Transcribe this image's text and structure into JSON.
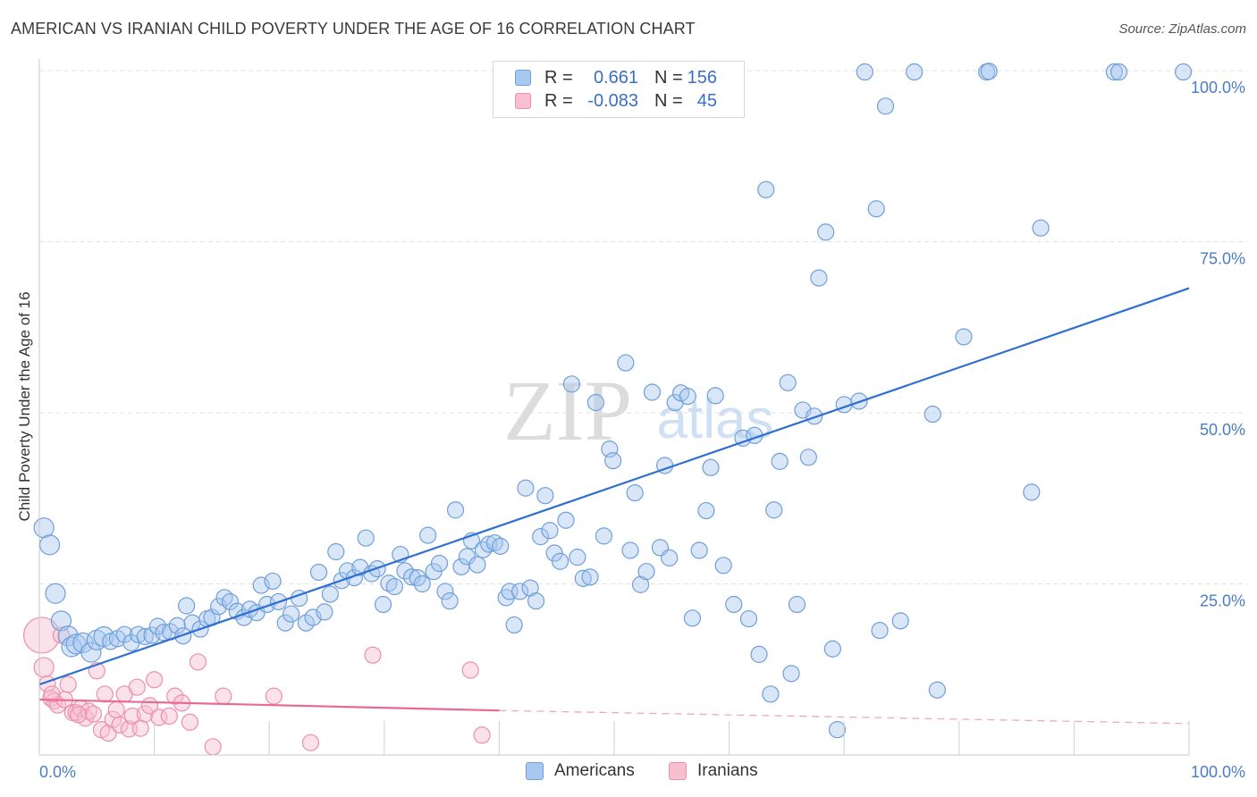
{
  "title": "AMERICAN VS IRANIAN CHILD POVERTY UNDER THE AGE OF 16 CORRELATION CHART",
  "source": "Source: ZipAtlas.com",
  "watermark": {
    "zip": "ZIP",
    "atlas": "atlas"
  },
  "colors": {
    "americans_fill": "#a9c8f0",
    "americans_stroke": "#6f9fd8",
    "americans_line": "#2e6fd0",
    "iranians_fill": "#f7bfd0",
    "iranians_stroke": "#ec8fac",
    "iranians_line": "#e86a94",
    "tick_label": "#4a7cc8",
    "grid": "#e2e2e2"
  },
  "legend": {
    "rows": [
      {
        "r_label": "R =",
        "r_value": "0.661",
        "n_label": "N =",
        "n_value": "156"
      },
      {
        "r_label": "R =",
        "r_value": "-0.083",
        "n_label": "N =",
        "n_value": "45"
      }
    ]
  },
  "bottom_legend": {
    "americans": "Americans",
    "iranians": "Iranians"
  },
  "chart_data": {
    "type": "scatter",
    "title": "AMERICAN VS IRANIAN CHILD POVERTY UNDER THE AGE OF 16 CORRELATION CHART",
    "xlabel": "",
    "ylabel": "Child Poverty Under the Age of 16",
    "xlim": [
      0,
      100
    ],
    "ylim": [
      0,
      100
    ],
    "x_tick_labels": [
      "0.0%",
      "100.0%"
    ],
    "y_tick_labels": [
      "25.0%",
      "50.0%",
      "75.0%",
      "100.0%"
    ],
    "y_ticks": [
      25,
      50,
      75,
      100
    ],
    "grid": true,
    "legend_placement": "top-center",
    "series": [
      {
        "name": "Americans",
        "r": 0.661,
        "n": 156,
        "trend": {
          "x": [
            0,
            100
          ],
          "y": [
            10.3,
            68.2
          ]
        },
        "points": [
          [
            0.4,
            33.2
          ],
          [
            0.9,
            30.7
          ],
          [
            1.4,
            23.6
          ],
          [
            1.9,
            19.6
          ],
          [
            2.5,
            17.4
          ],
          [
            2.8,
            15.8
          ],
          [
            3.2,
            16.2
          ],
          [
            3.8,
            16.4
          ],
          [
            4.5,
            15.0
          ],
          [
            5.0,
            16.8
          ],
          [
            5.6,
            17.3
          ],
          [
            6.2,
            16.6
          ],
          [
            6.8,
            17.0
          ],
          [
            7.4,
            17.6
          ],
          [
            8.0,
            16.4
          ],
          [
            8.6,
            17.6
          ],
          [
            9.2,
            17.3
          ],
          [
            9.8,
            17.5
          ],
          [
            10.3,
            18.8
          ],
          [
            10.8,
            17.9
          ],
          [
            11.4,
            18.0
          ],
          [
            12.0,
            18.9
          ],
          [
            12.5,
            17.4
          ],
          [
            12.8,
            21.8
          ],
          [
            13.3,
            19.3
          ],
          [
            14.0,
            18.4
          ],
          [
            14.6,
            19.9
          ],
          [
            15.0,
            20.1
          ],
          [
            15.6,
            21.7
          ],
          [
            16.1,
            23.0
          ],
          [
            16.6,
            22.4
          ],
          [
            17.2,
            21.0
          ],
          [
            17.8,
            20.1
          ],
          [
            18.3,
            21.3
          ],
          [
            18.9,
            20.8
          ],
          [
            19.3,
            24.8
          ],
          [
            19.8,
            22.0
          ],
          [
            20.3,
            25.4
          ],
          [
            20.8,
            22.4
          ],
          [
            21.4,
            19.3
          ],
          [
            21.9,
            20.6
          ],
          [
            22.6,
            22.9
          ],
          [
            23.2,
            19.3
          ],
          [
            23.8,
            20.1
          ],
          [
            24.3,
            26.7
          ],
          [
            24.8,
            20.9
          ],
          [
            25.3,
            23.5
          ],
          [
            25.8,
            29.7
          ],
          [
            26.3,
            25.5
          ],
          [
            26.8,
            26.9
          ],
          [
            27.4,
            25.9
          ],
          [
            27.9,
            27.4
          ],
          [
            28.4,
            31.7
          ],
          [
            28.9,
            26.5
          ],
          [
            29.4,
            27.2
          ],
          [
            29.9,
            22.0
          ],
          [
            30.4,
            25.1
          ],
          [
            30.9,
            24.6
          ],
          [
            31.4,
            29.3
          ],
          [
            31.8,
            26.9
          ],
          [
            32.4,
            26.0
          ],
          [
            32.9,
            25.9
          ],
          [
            33.3,
            25.0
          ],
          [
            33.8,
            32.1
          ],
          [
            34.3,
            26.8
          ],
          [
            34.8,
            28.0
          ],
          [
            35.3,
            23.9
          ],
          [
            35.7,
            22.5
          ],
          [
            36.2,
            35.8
          ],
          [
            36.7,
            27.5
          ],
          [
            37.2,
            29.0
          ],
          [
            37.6,
            31.3
          ],
          [
            38.1,
            27.8
          ],
          [
            38.6,
            30.0
          ],
          [
            39.1,
            30.8
          ],
          [
            39.6,
            31.0
          ],
          [
            40.1,
            30.5
          ],
          [
            40.6,
            23.0
          ],
          [
            40.9,
            23.9
          ],
          [
            41.3,
            19.0
          ],
          [
            41.8,
            23.9
          ],
          [
            42.3,
            39.0
          ],
          [
            42.7,
            24.4
          ],
          [
            43.2,
            22.5
          ],
          [
            43.6,
            31.9
          ],
          [
            44.0,
            37.9
          ],
          [
            44.4,
            32.8
          ],
          [
            44.8,
            29.5
          ],
          [
            45.3,
            28.3
          ],
          [
            45.8,
            34.3
          ],
          [
            46.3,
            54.2
          ],
          [
            46.8,
            28.9
          ],
          [
            47.3,
            25.8
          ],
          [
            47.9,
            26.0
          ],
          [
            48.4,
            51.5
          ],
          [
            49.1,
            32.0
          ],
          [
            49.6,
            44.7
          ],
          [
            49.9,
            43.0
          ],
          [
            51.0,
            57.3
          ],
          [
            51.4,
            29.9
          ],
          [
            51.8,
            38.3
          ],
          [
            52.3,
            24.9
          ],
          [
            52.8,
            26.8
          ],
          [
            53.3,
            53.0
          ],
          [
            54.0,
            30.3
          ],
          [
            54.4,
            42.3
          ],
          [
            54.8,
            28.8
          ],
          [
            55.3,
            51.5
          ],
          [
            55.8,
            52.9
          ],
          [
            56.4,
            52.4
          ],
          [
            56.8,
            20.0
          ],
          [
            57.4,
            29.9
          ],
          [
            58.0,
            35.7
          ],
          [
            58.4,
            42.0
          ],
          [
            58.8,
            52.5
          ],
          [
            59.5,
            27.7
          ],
          [
            60.4,
            22.0
          ],
          [
            61.2,
            46.3
          ],
          [
            61.7,
            19.9
          ],
          [
            62.2,
            46.7
          ],
          [
            62.6,
            14.7
          ],
          [
            63.2,
            82.6
          ],
          [
            63.6,
            8.9
          ],
          [
            63.9,
            35.8
          ],
          [
            64.4,
            42.9
          ],
          [
            65.1,
            54.4
          ],
          [
            65.4,
            11.9
          ],
          [
            65.9,
            22.0
          ],
          [
            66.4,
            50.4
          ],
          [
            66.9,
            43.5
          ],
          [
            67.4,
            49.5
          ],
          [
            67.8,
            69.7
          ],
          [
            68.4,
            76.4
          ],
          [
            69.0,
            15.5
          ],
          [
            69.4,
            3.7
          ],
          [
            70.0,
            51.2
          ],
          [
            71.3,
            51.7
          ],
          [
            71.8,
            99.8
          ],
          [
            72.8,
            79.8
          ],
          [
            73.1,
            18.2
          ],
          [
            73.6,
            94.8
          ],
          [
            74.9,
            19.6
          ],
          [
            76.1,
            99.8
          ],
          [
            77.7,
            49.8
          ],
          [
            78.1,
            9.5
          ],
          [
            80.4,
            61.1
          ],
          [
            82.4,
            99.8
          ],
          [
            82.6,
            99.9
          ],
          [
            86.3,
            38.4
          ],
          [
            87.1,
            77.0
          ],
          [
            93.5,
            99.8
          ],
          [
            93.9,
            99.8
          ],
          [
            99.5,
            99.8
          ]
        ]
      },
      {
        "name": "Iranians",
        "r": -0.083,
        "n": 45,
        "trend": {
          "x": [
            0,
            40,
            100
          ],
          "y": [
            8.1,
            6.5,
            4.6
          ]
        },
        "points": [
          [
            0.2,
            17.5
          ],
          [
            0.4,
            12.8
          ],
          [
            0.7,
            10.4
          ],
          [
            1.0,
            8.3
          ],
          [
            1.3,
            7.9
          ],
          [
            1.6,
            7.3
          ],
          [
            1.9,
            17.5
          ],
          [
            2.2,
            8.1
          ],
          [
            2.5,
            10.3
          ],
          [
            2.9,
            6.2
          ],
          [
            3.2,
            6.2
          ],
          [
            3.6,
            6.8
          ],
          [
            4.0,
            5.4
          ],
          [
            4.3,
            6.4
          ],
          [
            4.7,
            6.0
          ],
          [
            5.0,
            12.3
          ],
          [
            5.4,
            3.7
          ],
          [
            5.7,
            8.9
          ],
          [
            6.0,
            3.2
          ],
          [
            6.4,
            5.2
          ],
          [
            6.7,
            6.6
          ],
          [
            7.0,
            4.4
          ],
          [
            7.4,
            8.9
          ],
          [
            7.8,
            3.8
          ],
          [
            8.1,
            5.7
          ],
          [
            8.5,
            9.9
          ],
          [
            8.8,
            3.9
          ],
          [
            9.2,
            6.0
          ],
          [
            9.6,
            7.2
          ],
          [
            10.0,
            11.0
          ],
          [
            10.4,
            5.5
          ],
          [
            11.3,
            5.7
          ],
          [
            11.8,
            8.6
          ],
          [
            12.4,
            7.6
          ],
          [
            13.1,
            4.8
          ],
          [
            13.8,
            13.6
          ],
          [
            15.1,
            1.2
          ],
          [
            16.0,
            8.6
          ],
          [
            20.4,
            8.6
          ],
          [
            23.6,
            1.8
          ],
          [
            29.0,
            14.6
          ],
          [
            37.5,
            12.4
          ],
          [
            38.5,
            2.9
          ],
          [
            1.1,
            8.9
          ],
          [
            3.4,
            5.9
          ]
        ]
      }
    ]
  },
  "y_axis_title": "Child Poverty Under the Age of 16"
}
